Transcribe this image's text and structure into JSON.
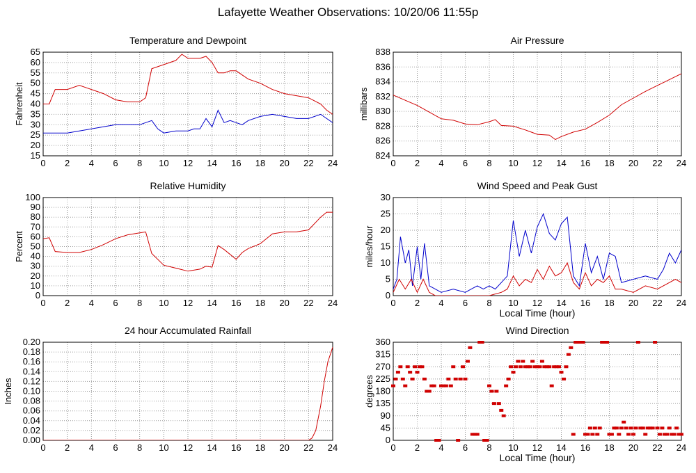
{
  "page": {
    "title": "Lafayette Weather Observations: 10/20/06 11:55p"
  },
  "colors": {
    "red": "#d00000",
    "blue": "#0000cc",
    "grid": "#9a9a9a",
    "axis": "#000000"
  },
  "chart_data": [
    {
      "id": "temperature",
      "type": "line",
      "title": "Temperature and Dewpoint",
      "xlabel": "",
      "ylabel": "Fahrenheit",
      "xlim": [
        0,
        24
      ],
      "ylim": [
        15,
        65
      ],
      "xticks": [
        0,
        2,
        4,
        6,
        8,
        10,
        12,
        14,
        16,
        18,
        20,
        22,
        24
      ],
      "yticks": [
        15,
        20,
        25,
        30,
        35,
        40,
        45,
        50,
        55,
        60,
        65
      ],
      "grid": true,
      "series": [
        {
          "color": "#d00000",
          "x": [
            0,
            0.5,
            1,
            1.5,
            2,
            3,
            4,
            5,
            6,
            7,
            8,
            8.5,
            9,
            10,
            11,
            11.5,
            12,
            12.5,
            13,
            13.5,
            14,
            14.5,
            15,
            15.5,
            16,
            16.5,
            17,
            18,
            19,
            20,
            21,
            22,
            23,
            23.5,
            24
          ],
          "y": [
            40,
            40,
            47,
            47,
            47,
            49,
            47,
            45,
            42,
            41,
            41,
            43,
            57,
            59,
            61,
            64,
            62,
            62,
            62,
            63,
            60,
            55,
            55,
            56,
            56,
            54,
            52,
            50,
            47,
            45,
            44,
            43,
            40,
            37,
            35
          ]
        },
        {
          "color": "#0000cc",
          "x": [
            0,
            0.5,
            1,
            2,
            3,
            4,
            5,
            6,
            7,
            8,
            8.5,
            9,
            9.5,
            10,
            11,
            12,
            12.5,
            13,
            13.5,
            14,
            14.5,
            15,
            15.5,
            16,
            16.5,
            17,
            18,
            19,
            20,
            21,
            22,
            23,
            24
          ],
          "y": [
            26,
            26,
            26,
            26,
            27,
            28,
            29,
            30,
            30,
            30,
            31,
            32,
            28,
            26,
            27,
            27,
            28,
            28,
            33,
            29,
            37,
            31,
            32,
            31,
            30,
            32,
            34,
            35,
            34,
            33,
            33,
            35,
            31
          ]
        }
      ]
    },
    {
      "id": "pressure",
      "type": "line",
      "title": "Air Pressure",
      "xlabel": "",
      "ylabel": "millibars",
      "xlim": [
        0,
        24
      ],
      "ylim": [
        824,
        838
      ],
      "xticks": [
        0,
        2,
        4,
        6,
        8,
        10,
        12,
        14,
        16,
        18,
        20,
        22,
        24
      ],
      "yticks": [
        824,
        826,
        828,
        830,
        832,
        834,
        836,
        838
      ],
      "grid": true,
      "series": [
        {
          "color": "#d00000",
          "x": [
            0,
            1,
            2,
            3,
            4,
            5,
            6,
            7,
            8,
            8.5,
            9,
            10,
            11,
            12,
            13,
            13.5,
            14,
            15,
            16,
            17,
            18,
            19,
            20,
            21,
            22,
            23,
            24
          ],
          "y": [
            832.2,
            831.5,
            830.8,
            829.9,
            829,
            828.8,
            828.3,
            828.2,
            828.6,
            828.9,
            828.1,
            828,
            827.5,
            826.9,
            826.8,
            826.2,
            826.6,
            827.2,
            827.6,
            828.5,
            829.5,
            830.9,
            831.8,
            832.7,
            833.5,
            834.3,
            835.1
          ]
        }
      ]
    },
    {
      "id": "humidity",
      "type": "line",
      "title": "Relative Humidity",
      "xlabel": "",
      "ylabel": "Percent",
      "xlim": [
        0,
        24
      ],
      "ylim": [
        0,
        100
      ],
      "xticks": [
        0,
        2,
        4,
        6,
        8,
        10,
        12,
        14,
        16,
        18,
        20,
        22,
        24
      ],
      "yticks": [
        0,
        10,
        20,
        30,
        40,
        50,
        60,
        70,
        80,
        90,
        100
      ],
      "grid": true,
      "series": [
        {
          "color": "#d00000",
          "x": [
            0,
            0.5,
            1,
            2,
            3,
            4,
            5,
            6,
            7,
            8,
            8.5,
            9,
            10,
            11,
            12,
            13,
            13.5,
            14,
            14.5,
            15,
            16,
            16.5,
            17,
            18,
            19,
            20,
            21,
            22,
            23,
            23.5,
            24
          ],
          "y": [
            58,
            59,
            45,
            44,
            44,
            47,
            52,
            58,
            62,
            64,
            65,
            43,
            31,
            28,
            25,
            27,
            30,
            29,
            51,
            47,
            37,
            44,
            48,
            53,
            63,
            65,
            65,
            67,
            80,
            85,
            85
          ]
        }
      ]
    },
    {
      "id": "wind-speed",
      "type": "line",
      "title": "Wind Speed and Peak Gust",
      "xlabel": "Local Time (hour)",
      "ylabel": "miles/hour",
      "xlim": [
        0,
        24
      ],
      "ylim": [
        0,
        30
      ],
      "xticks": [
        0,
        2,
        4,
        6,
        8,
        10,
        12,
        14,
        16,
        18,
        20,
        22,
        24
      ],
      "yticks": [
        0,
        5,
        10,
        15,
        20,
        25,
        30
      ],
      "grid": true,
      "series": [
        {
          "color": "#0000cc",
          "x": [
            0,
            0.3,
            0.6,
            1,
            1.3,
            1.6,
            2,
            2.3,
            2.6,
            3,
            3.5,
            4,
            5,
            6,
            6.5,
            7,
            7.5,
            8,
            8.5,
            9,
            9.5,
            10,
            10.5,
            11,
            11.5,
            12,
            12.5,
            13,
            13.5,
            14,
            14.5,
            15,
            15.5,
            16,
            16.5,
            17,
            17.5,
            18,
            18.5,
            19,
            20,
            21,
            22,
            22.5,
            23,
            23.5,
            24
          ],
          "y": [
            2,
            5,
            18,
            10,
            14,
            3,
            15,
            5,
            16,
            3,
            2,
            1,
            2,
            1,
            2,
            3,
            2,
            3,
            2,
            4,
            6,
            23,
            12,
            20,
            13,
            21,
            25,
            19,
            17,
            22,
            24,
            6,
            3,
            16,
            7,
            12,
            5,
            13,
            12,
            4,
            5,
            6,
            5,
            8,
            13,
            10,
            14
          ]
        },
        {
          "color": "#d00000",
          "x": [
            0,
            0.5,
            1,
            1.5,
            2,
            2.5,
            3,
            3.5,
            4,
            5,
            6,
            7,
            8,
            9,
            9.5,
            10,
            10.5,
            11,
            11.5,
            12,
            12.5,
            13,
            13.5,
            14,
            14.5,
            15,
            15.5,
            16,
            16.5,
            17,
            17.5,
            18,
            18.5,
            19,
            20,
            21,
            22,
            23,
            23.5,
            24
          ],
          "y": [
            1,
            5,
            2,
            5,
            1,
            5,
            1,
            0,
            0,
            0,
            0,
            0,
            0,
            1,
            2,
            6,
            3,
            5,
            4,
            8,
            5,
            9,
            6,
            7,
            10,
            4,
            2,
            7,
            3,
            5,
            4,
            6,
            2,
            2,
            1,
            3,
            2,
            4,
            5,
            4
          ]
        }
      ]
    },
    {
      "id": "rainfall",
      "type": "line",
      "title": "24 hour Accumulated Rainfall",
      "xlabel": "",
      "ylabel": "Inches",
      "xlim": [
        0,
        24
      ],
      "ylim": [
        0,
        0.2
      ],
      "xticks": [
        0,
        2,
        4,
        6,
        8,
        10,
        12,
        14,
        16,
        18,
        20,
        22,
        24
      ],
      "yticks": [
        0,
        0.02,
        0.04,
        0.06,
        0.08,
        0.1,
        0.12,
        0.14,
        0.16,
        0.18,
        0.2
      ],
      "yticklabels": [
        "0.00",
        "0.02",
        "0.04",
        "0.06",
        "0.08",
        "0.10",
        "0.12",
        "0.14",
        "0.16",
        "0.18",
        "0.20"
      ],
      "grid": true,
      "series": [
        {
          "color": "#d00000",
          "x": [
            0,
            22,
            22.3,
            22.6,
            23,
            23.3,
            23.6,
            24
          ],
          "y": [
            0,
            0,
            0.005,
            0.02,
            0.07,
            0.12,
            0.16,
            0.19
          ]
        }
      ]
    },
    {
      "id": "wind-direction",
      "type": "scatter",
      "title": "Wind Direction",
      "xlabel": "Local Time (hour)",
      "ylabel": "degrees",
      "xlim": [
        0,
        24
      ],
      "ylim": [
        0,
        360
      ],
      "xticks": [
        0,
        2,
        4,
        6,
        8,
        10,
        12,
        14,
        16,
        18,
        20,
        22,
        24
      ],
      "yticks": [
        0,
        45,
        90,
        135,
        180,
        225,
        270,
        315,
        360
      ],
      "grid": true,
      "series": [
        {
          "color": "#d00000",
          "x": [
            0,
            0.2,
            0.4,
            0.6,
            0.8,
            1,
            1.2,
            1.4,
            1.6,
            1.8,
            2,
            2.2,
            2.4,
            2.6,
            2.8,
            3,
            3.2,
            3.4,
            3.6,
            3.8,
            4,
            4.2,
            4.4,
            4.6,
            4.8,
            5,
            5.2,
            5.4,
            5.6,
            5.8,
            6,
            6.2,
            6.4,
            6.6,
            6.8,
            7,
            7.2,
            7.4,
            7.6,
            7.8,
            8,
            8.2,
            8.4,
            8.6,
            8.8,
            9,
            9.2,
            9.4,
            9.6,
            9.8,
            10,
            10.2,
            10.4,
            10.6,
            10.8,
            11,
            11.2,
            11.4,
            11.6,
            11.8,
            12,
            12.2,
            12.4,
            12.6,
            12.8,
            13,
            13.2,
            13.4,
            13.6,
            13.8,
            14,
            14.2,
            14.4,
            14.6,
            14.8,
            15,
            15.2,
            15.4,
            15.6,
            15.8,
            16,
            16.2,
            16.4,
            16.6,
            16.8,
            17,
            17.2,
            17.4,
            17.6,
            17.8,
            18,
            18.2,
            18.4,
            18.6,
            18.8,
            19,
            19.2,
            19.4,
            19.6,
            19.8,
            20,
            20.2,
            20.4,
            20.6,
            20.8,
            21,
            21.2,
            21.4,
            21.6,
            21.8,
            22,
            22.2,
            22.4,
            22.6,
            22.8,
            23,
            23.2,
            23.4,
            23.6,
            23.8,
            24
          ],
          "y": [
            200,
            225,
            250,
            270,
            225,
            200,
            270,
            250,
            225,
            270,
            250,
            270,
            270,
            225,
            180,
            180,
            200,
            200,
            0,
            0,
            200,
            200,
            200,
            225,
            200,
            270,
            225,
            0,
            225,
            270,
            225,
            290,
            340,
            22,
            22,
            22,
            360,
            360,
            0,
            0,
            200,
            180,
            135,
            180,
            135,
            110,
            90,
            200,
            225,
            270,
            250,
            270,
            290,
            270,
            290,
            270,
            270,
            270,
            290,
            270,
            270,
            270,
            290,
            270,
            270,
            270,
            200,
            270,
            270,
            270,
            250,
            225,
            270,
            315,
            340,
            22,
            360,
            360,
            360,
            360,
            22,
            22,
            45,
            22,
            45,
            22,
            45,
            360,
            360,
            360,
            22,
            22,
            45,
            45,
            22,
            45,
            67,
            45,
            22,
            45,
            22,
            45,
            360,
            45,
            45,
            22,
            45,
            45,
            45,
            360,
            45,
            22,
            45,
            22,
            22,
            45,
            22,
            22,
            45,
            22,
            22
          ]
        }
      ]
    }
  ]
}
